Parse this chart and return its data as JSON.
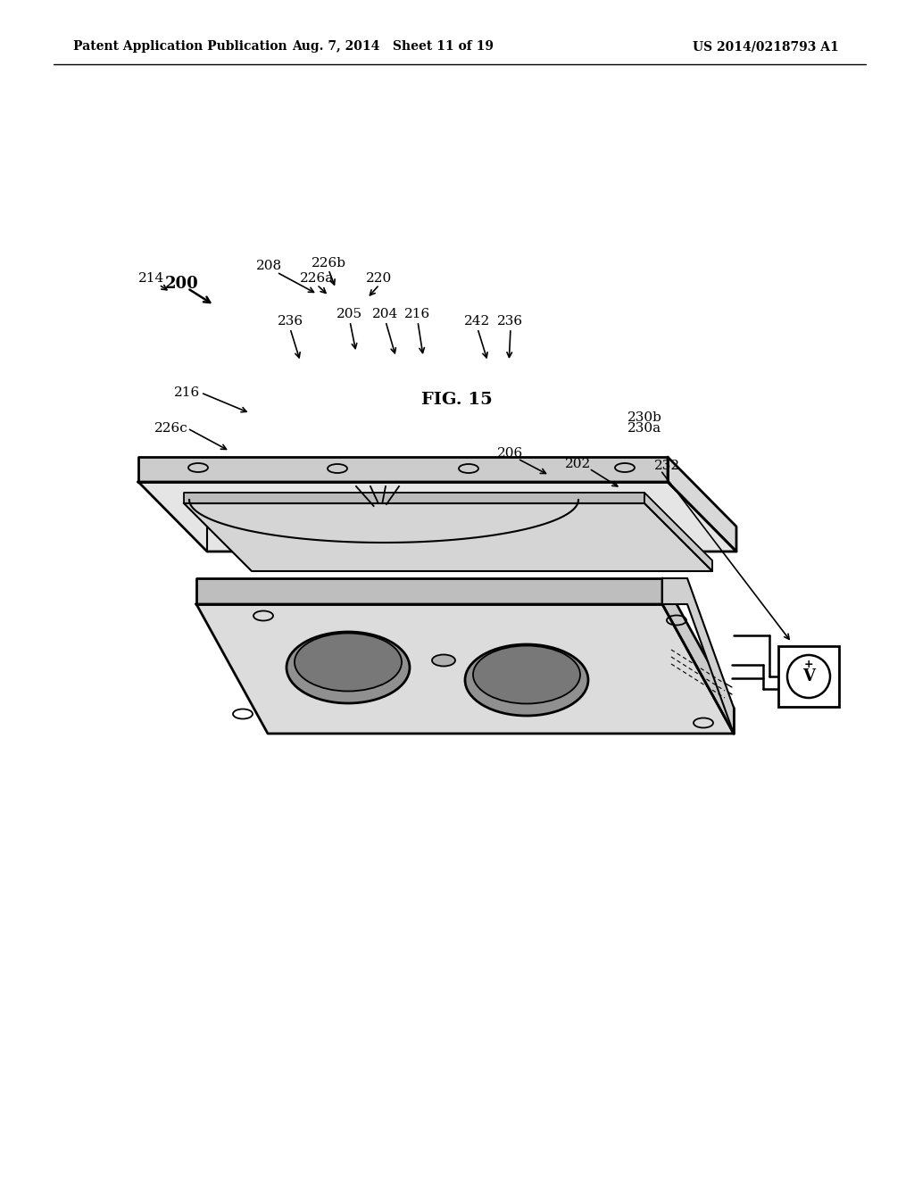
{
  "bg_color": "#ffffff",
  "line_color": "#000000",
  "header_left": "Patent Application Publication",
  "header_mid": "Aug. 7, 2014   Sheet 11 of 19",
  "header_right": "US 2014/0218793 A1",
  "fig_label": "FIG. 15"
}
